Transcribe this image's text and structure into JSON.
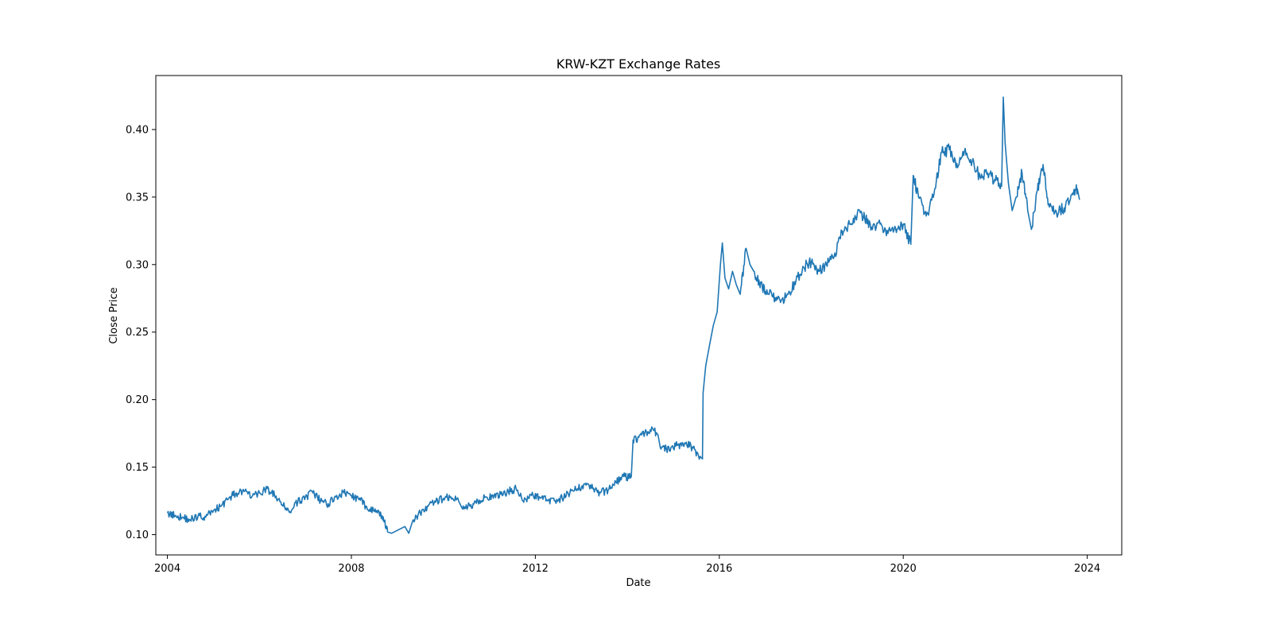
{
  "chart_data": {
    "type": "line",
    "title": "KRW-KZT Exchange Rates",
    "xlabel": "Date",
    "ylabel": "Close Price",
    "xlim": [
      "2003-10-01",
      "2024-10-01"
    ],
    "ylim": [
      0.085,
      0.44
    ],
    "x_ticks": [
      "2004",
      "2008",
      "2012",
      "2016",
      "2020",
      "2024"
    ],
    "y_ticks": [
      "0.10",
      "0.15",
      "0.20",
      "0.25",
      "0.30",
      "0.35",
      "0.40"
    ],
    "grid": false,
    "legend": "none",
    "series": [
      {
        "color": "#1f77b4",
        "points": [
          [
            "2004-01-01",
            0.116
          ],
          [
            "2004-03-01",
            0.114
          ],
          [
            "2004-05-01",
            0.113
          ],
          [
            "2004-07-01",
            0.111
          ],
          [
            "2004-09-01",
            0.114
          ],
          [
            "2004-11-01",
            0.113
          ],
          [
            "2005-01-01",
            0.118
          ],
          [
            "2005-03-01",
            0.121
          ],
          [
            "2005-05-01",
            0.127
          ],
          [
            "2005-07-01",
            0.131
          ],
          [
            "2005-09-01",
            0.132
          ],
          [
            "2005-11-01",
            0.128
          ],
          [
            "2006-01-01",
            0.131
          ],
          [
            "2006-03-01",
            0.134
          ],
          [
            "2006-05-01",
            0.129
          ],
          [
            "2006-07-01",
            0.122
          ],
          [
            "2006-09-01",
            0.117
          ],
          [
            "2006-11-01",
            0.124
          ],
          [
            "2007-01-01",
            0.128
          ],
          [
            "2007-03-01",
            0.131
          ],
          [
            "2007-05-01",
            0.125
          ],
          [
            "2007-07-01",
            0.123
          ],
          [
            "2007-09-01",
            0.128
          ],
          [
            "2007-11-01",
            0.131
          ],
          [
            "2008-01-01",
            0.129
          ],
          [
            "2008-03-01",
            0.126
          ],
          [
            "2008-05-01",
            0.121
          ],
          [
            "2008-07-01",
            0.117
          ],
          [
            "2008-09-01",
            0.114
          ],
          [
            "2008-10-15",
            0.102
          ],
          [
            "2008-11-15",
            0.101
          ],
          [
            "2009-03-01",
            0.106
          ],
          [
            "2009-04-01",
            0.101
          ],
          [
            "2009-05-01",
            0.11
          ],
          [
            "2009-07-01",
            0.116
          ],
          [
            "2009-09-01",
            0.121
          ],
          [
            "2009-11-01",
            0.124
          ],
          [
            "2010-01-01",
            0.127
          ],
          [
            "2010-03-01",
            0.128
          ],
          [
            "2010-05-01",
            0.125
          ],
          [
            "2010-06-01",
            0.119
          ],
          [
            "2010-08-01",
            0.121
          ],
          [
            "2010-10-01",
            0.125
          ],
          [
            "2010-12-01",
            0.128
          ],
          [
            "2011-02-01",
            0.127
          ],
          [
            "2011-04-01",
            0.13
          ],
          [
            "2011-06-01",
            0.132
          ],
          [
            "2011-08-01",
            0.134
          ],
          [
            "2011-10-01",
            0.124
          ],
          [
            "2011-12-01",
            0.129
          ],
          [
            "2012-02-01",
            0.128
          ],
          [
            "2012-04-01",
            0.126
          ],
          [
            "2012-06-01",
            0.125
          ],
          [
            "2012-08-01",
            0.127
          ],
          [
            "2012-10-01",
            0.131
          ],
          [
            "2012-12-01",
            0.134
          ],
          [
            "2013-02-01",
            0.138
          ],
          [
            "2013-04-01",
            0.134
          ],
          [
            "2013-06-01",
            0.131
          ],
          [
            "2013-08-01",
            0.133
          ],
          [
            "2013-10-01",
            0.139
          ],
          [
            "2013-12-01",
            0.143
          ],
          [
            "2014-02-01",
            0.143
          ],
          [
            "2014-02-15",
            0.17
          ],
          [
            "2014-04-01",
            0.172
          ],
          [
            "2014-06-01",
            0.176
          ],
          [
            "2014-08-01",
            0.177
          ],
          [
            "2014-10-01",
            0.165
          ],
          [
            "2014-12-01",
            0.162
          ],
          [
            "2015-02-01",
            0.166
          ],
          [
            "2015-04-01",
            0.168
          ],
          [
            "2015-06-01",
            0.165
          ],
          [
            "2015-08-01",
            0.158
          ],
          [
            "2015-08-20",
            0.156
          ],
          [
            "2015-08-25",
            0.205
          ],
          [
            "2015-09-15",
            0.225
          ],
          [
            "2015-10-15",
            0.24
          ],
          [
            "2015-11-15",
            0.255
          ],
          [
            "2015-12-15",
            0.265
          ],
          [
            "2016-01-10",
            0.3
          ],
          [
            "2016-01-25",
            0.316
          ],
          [
            "2016-02-15",
            0.29
          ],
          [
            "2016-03-15",
            0.282
          ],
          [
            "2016-04-15",
            0.295
          ],
          [
            "2016-05-15",
            0.285
          ],
          [
            "2016-06-15",
            0.278
          ],
          [
            "2016-08-01",
            0.312
          ],
          [
            "2016-09-01",
            0.3
          ],
          [
            "2016-10-01",
            0.295
          ],
          [
            "2016-11-15",
            0.286
          ],
          [
            "2017-01-01",
            0.28
          ],
          [
            "2017-03-01",
            0.276
          ],
          [
            "2017-05-01",
            0.272
          ],
          [
            "2017-07-01",
            0.278
          ],
          [
            "2017-09-01",
            0.288
          ],
          [
            "2017-11-01",
            0.298
          ],
          [
            "2018-01-01",
            0.302
          ],
          [
            "2018-03-01",
            0.295
          ],
          [
            "2018-05-01",
            0.3
          ],
          [
            "2018-07-01",
            0.306
          ],
          [
            "2018-09-01",
            0.325
          ],
          [
            "2018-11-01",
            0.33
          ],
          [
            "2019-01-01",
            0.338
          ],
          [
            "2019-03-01",
            0.334
          ],
          [
            "2019-05-01",
            0.326
          ],
          [
            "2019-07-01",
            0.33
          ],
          [
            "2019-09-01",
            0.323
          ],
          [
            "2019-11-01",
            0.327
          ],
          [
            "2020-01-01",
            0.33
          ],
          [
            "2020-03-01",
            0.315
          ],
          [
            "2020-03-20",
            0.366
          ],
          [
            "2020-05-01",
            0.35
          ],
          [
            "2020-07-01",
            0.336
          ],
          [
            "2020-09-01",
            0.352
          ],
          [
            "2020-11-01",
            0.383
          ],
          [
            "2021-01-01",
            0.385
          ],
          [
            "2021-03-01",
            0.375
          ],
          [
            "2021-05-01",
            0.384
          ],
          [
            "2021-07-01",
            0.376
          ],
          [
            "2021-09-01",
            0.365
          ],
          [
            "2021-11-01",
            0.368
          ],
          [
            "2022-01-01",
            0.362
          ],
          [
            "2022-02-20",
            0.358
          ],
          [
            "2022-03-05",
            0.424
          ],
          [
            "2022-03-20",
            0.39
          ],
          [
            "2022-04-15",
            0.36
          ],
          [
            "2022-05-15",
            0.34
          ],
          [
            "2022-06-15",
            0.35
          ],
          [
            "2022-08-01",
            0.368
          ],
          [
            "2022-09-15",
            0.34
          ],
          [
            "2022-10-15",
            0.326
          ],
          [
            "2022-12-01",
            0.355
          ],
          [
            "2023-01-15",
            0.374
          ],
          [
            "2023-03-01",
            0.345
          ],
          [
            "2023-05-01",
            0.339
          ],
          [
            "2023-07-01",
            0.342
          ],
          [
            "2023-09-01",
            0.352
          ],
          [
            "2023-10-15",
            0.356
          ],
          [
            "2023-11-01",
            0.348
          ]
        ]
      }
    ]
  }
}
